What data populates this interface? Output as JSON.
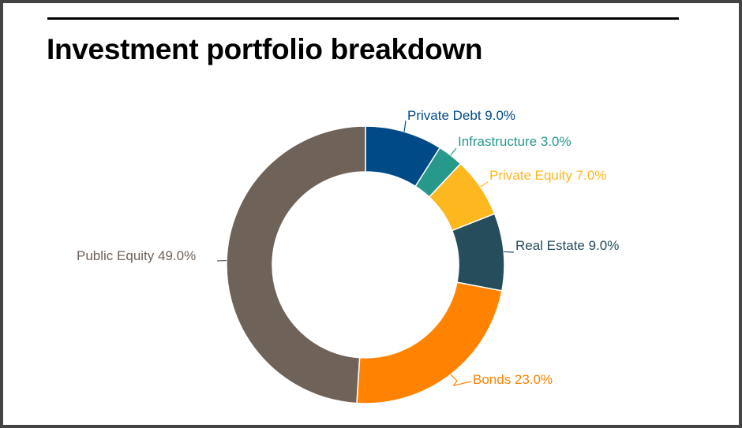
{
  "title": "Investment portfolio breakdown",
  "chart_data": {
    "type": "pie",
    "variant": "donut",
    "title": "Investment portfolio breakdown",
    "slices": [
      {
        "label": "Private Debt",
        "value": 9.0,
        "text": "Private Debt 9.0%",
        "color": "#004a87"
      },
      {
        "label": "Infrastructure",
        "value": 3.0,
        "text": "Infrastructure 3.0%",
        "color": "#27998a"
      },
      {
        "label": "Private Equity",
        "value": 7.0,
        "text": "Private Equity 7.0%",
        "color": "#fdb71f"
      },
      {
        "label": "Real Estate",
        "value": 9.0,
        "text": "Real Estate 9.0%",
        "color": "#264d5c"
      },
      {
        "label": "Bonds",
        "value": 23.0,
        "text": "Bonds 23.0%",
        "color": "#ff8300"
      },
      {
        "label": "Public Equity",
        "value": 49.0,
        "text": "Public Equity 49.0%",
        "color": "#6e6259"
      }
    ],
    "start_angle": "top",
    "direction": "clockwise"
  }
}
